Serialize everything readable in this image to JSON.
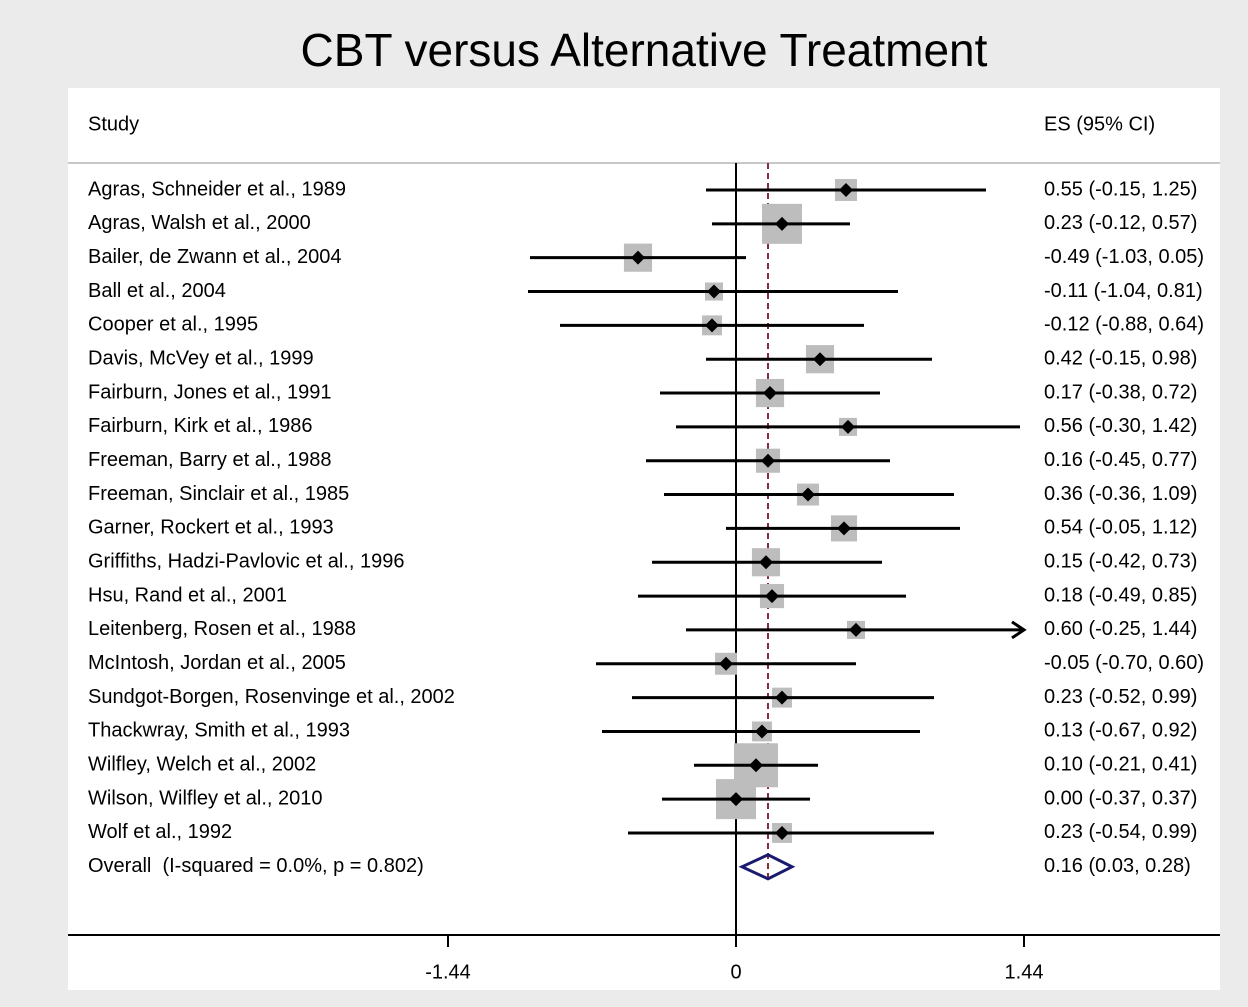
{
  "chart_data": {
    "type": "forest",
    "title": "CBT versus Alternative Treatment",
    "column_headers": [
      "Study",
      "ES (95% CI)"
    ],
    "categories": [
      "Agras, Schneider et al., 1989",
      "Agras, Walsh et al., 2000",
      "Bailer, de Zwann et al., 2004",
      "Ball et al., 2004",
      "Cooper et al., 1995",
      "Davis, McVey et al., 1999",
      "Fairburn, Jones et al., 1991",
      "Fairburn, Kirk et al., 1986",
      "Freeman, Barry et al., 1988",
      "Freeman, Sinclair et al., 1985",
      "Garner, Rockert et al., 1993",
      "Griffiths, Hadzi-Pavlovic et al., 1996",
      "Hsu, Rand et al., 2001",
      "Leitenberg, Rosen et al., 1988",
      "McIntosh, Jordan et al., 2005",
      "Sundgot-Borgen, Rosenvinge et al., 2002",
      "Thackwray, Smith et al., 1993",
      "Wilfley, Welch et al., 2002",
      "Wilson, Wilfley et al., 2010",
      "Wolf et al., 1992"
    ],
    "es": [
      0.55,
      0.23,
      -0.49,
      -0.11,
      -0.12,
      0.42,
      0.17,
      0.56,
      0.16,
      0.36,
      0.54,
      0.15,
      0.18,
      0.6,
      -0.05,
      0.23,
      0.13,
      0.1,
      0.0,
      0.23
    ],
    "ci_lower": [
      -0.15,
      -0.12,
      -1.03,
      -1.04,
      -0.88,
      -0.15,
      -0.38,
      -0.3,
      -0.45,
      -0.36,
      -0.05,
      -0.42,
      -0.49,
      -0.25,
      -0.7,
      -0.52,
      -0.67,
      -0.21,
      -0.37,
      -0.54
    ],
    "ci_upper": [
      1.25,
      0.57,
      0.05,
      0.81,
      0.64,
      0.98,
      0.72,
      1.42,
      0.77,
      1.09,
      1.12,
      0.73,
      0.85,
      1.44,
      0.6,
      0.99,
      0.92,
      0.41,
      0.37,
      0.99
    ],
    "weights": [
      3.4,
      11.3,
      5.6,
      2.3,
      2.8,
      5.6,
      5.6,
      2.3,
      4.1,
      3.4,
      4.8,
      5.6,
      4.1,
      2.3,
      3.4,
      2.8,
      2.8,
      13.7,
      11.3,
      2.8
    ],
    "value_labels": [
      "0.55 (-0.15, 1.25)",
      "0.23 (-0.12, 0.57)",
      "-0.49 (-1.03, 0.05)",
      "-0.11 (-1.04, 0.81)",
      "-0.12 (-0.88, 0.64)",
      "0.42 (-0.15, 0.98)",
      "0.17 (-0.38, 0.72)",
      "0.56 (-0.30, 1.42)",
      "0.16 (-0.45, 0.77)",
      "0.36 (-0.36, 1.09)",
      "0.54 (-0.05, 1.12)",
      "0.15 (-0.42, 0.73)",
      "0.18 (-0.49, 0.85)",
      "0.60 (-0.25, 1.44)",
      "-0.05 (-0.70, 0.60)",
      "0.23 (-0.52, 0.99)",
      "0.13 (-0.67, 0.92)",
      "0.10 (-0.21, 0.41)",
      "0.00 (-0.37, 0.37)",
      "0.23 (-0.54, 0.99)"
    ],
    "overall": {
      "label": "Overall  (I-squared = 0.0%, p = 0.802)",
      "es": 0.16,
      "ci_lower": 0.03,
      "ci_upper": 0.28,
      "value_label": "0.16 (0.03, 0.28)"
    },
    "xlim": [
      -1.44,
      1.44
    ],
    "xticks": [
      -1.44,
      0,
      1.44
    ],
    "box_color": "#bdbdbd",
    "point_color": "#000000",
    "diamond_color": "#1a1a6e",
    "overall_line_color": "#8b2c3a"
  }
}
